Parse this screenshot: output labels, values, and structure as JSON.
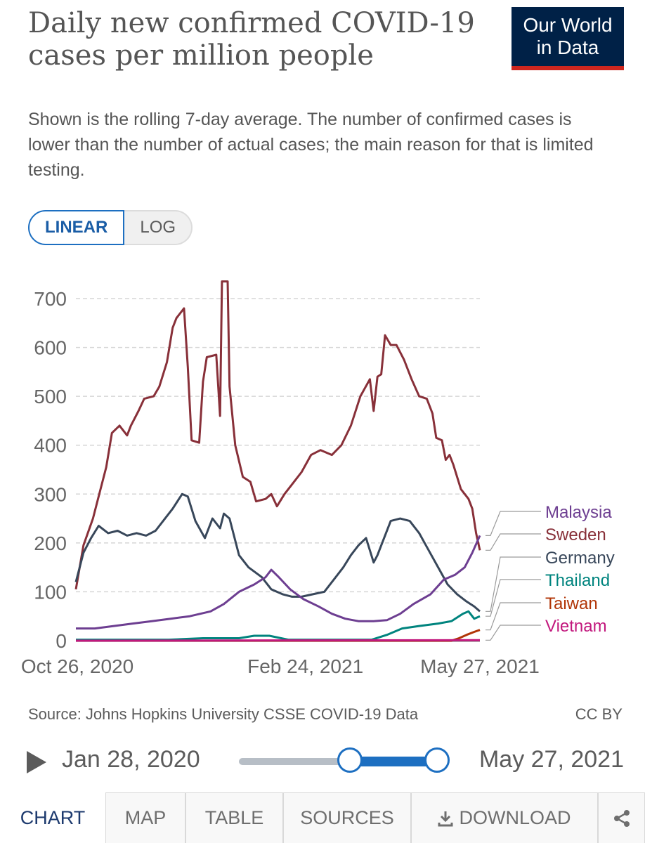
{
  "header": {
    "title": "Daily new confirmed COVID-19 cases per million people",
    "subtitle": "Shown is the rolling 7-day average. The number of confirmed cases is lower than the number of actual cases; the main reason for that is limited testing.",
    "logo_line1": "Our World",
    "logo_line2": "in Data",
    "logo_icon": "owid-logo"
  },
  "scale_toggle": {
    "linear": "LINEAR",
    "log": "LOG",
    "selected": "LINEAR"
  },
  "colors": {
    "Malaysia": "#6d3e91",
    "Sweden": "#883039",
    "Germany": "#38475a",
    "Thailand": "#00847e",
    "Taiwan": "#b13507",
    "Vietnam": "#c2187d",
    "accent": "#1d6fc1"
  },
  "chart_data": {
    "type": "line",
    "title": "Daily new confirmed COVID-19 cases per million people",
    "ylim": [
      0,
      700
    ],
    "yticks": [
      0,
      100,
      200,
      300,
      400,
      500,
      600,
      700
    ],
    "x_start": "2020-10-26",
    "x_end": "2021-05-27",
    "x_ticks": [
      "Oct 26, 2020",
      "Feb 24, 2021",
      "May 27, 2021"
    ],
    "grid": "horizontal dashed",
    "legend": "right, line-end labels",
    "series": [
      {
        "name": "Sweden",
        "points": [
          [
            "2020-10-26",
            105
          ],
          [
            "2020-10-30",
            195
          ],
          [
            "2020-11-04",
            250
          ],
          [
            "2020-11-08",
            310
          ],
          [
            "2020-11-11",
            355
          ],
          [
            "2020-11-14",
            425
          ],
          [
            "2020-11-18",
            440
          ],
          [
            "2020-11-22",
            420
          ],
          [
            "2020-11-24",
            440
          ],
          [
            "2020-11-28",
            470
          ],
          [
            "2020-12-01",
            495
          ],
          [
            "2020-12-06",
            500
          ],
          [
            "2020-12-09",
            520
          ],
          [
            "2020-12-13",
            570
          ],
          [
            "2020-12-16",
            640
          ],
          [
            "2020-12-18",
            660
          ],
          [
            "2020-12-22",
            680
          ],
          [
            "2020-12-24",
            560
          ],
          [
            "2020-12-26",
            410
          ],
          [
            "2020-12-30",
            405
          ],
          [
            "2021-01-01",
            530
          ],
          [
            "2021-01-03",
            580
          ],
          [
            "2021-01-08",
            585
          ],
          [
            "2021-01-10",
            460
          ],
          [
            "2021-01-11",
            735
          ],
          [
            "2021-01-14",
            735
          ],
          [
            "2021-01-15",
            520
          ],
          [
            "2021-01-18",
            400
          ],
          [
            "2021-01-22",
            335
          ],
          [
            "2021-01-26",
            325
          ],
          [
            "2021-01-29",
            285
          ],
          [
            "2021-02-03",
            290
          ],
          [
            "2021-02-06",
            300
          ],
          [
            "2021-02-09",
            275
          ],
          [
            "2021-02-13",
            300
          ],
          [
            "2021-02-17",
            320
          ],
          [
            "2021-02-22",
            345
          ],
          [
            "2021-02-27",
            380
          ],
          [
            "2021-03-04",
            390
          ],
          [
            "2021-03-10",
            380
          ],
          [
            "2021-03-15",
            400
          ],
          [
            "2021-03-20",
            440
          ],
          [
            "2021-03-25",
            500
          ],
          [
            "2021-03-30",
            535
          ],
          [
            "2021-04-01",
            470
          ],
          [
            "2021-04-03",
            540
          ],
          [
            "2021-04-05",
            545
          ],
          [
            "2021-04-07",
            625
          ],
          [
            "2021-04-10",
            605
          ],
          [
            "2021-04-13",
            605
          ],
          [
            "2021-04-17",
            575
          ],
          [
            "2021-04-21",
            535
          ],
          [
            "2021-04-25",
            500
          ],
          [
            "2021-04-29",
            495
          ],
          [
            "2021-05-02",
            465
          ],
          [
            "2021-05-04",
            415
          ],
          [
            "2021-05-07",
            410
          ],
          [
            "2021-05-09",
            370
          ],
          [
            "2021-05-11",
            380
          ],
          [
            "2021-05-13",
            360
          ],
          [
            "2021-05-17",
            310
          ],
          [
            "2021-05-21",
            290
          ],
          [
            "2021-05-23",
            270
          ],
          [
            "2021-05-25",
            220
          ],
          [
            "2021-05-27",
            185
          ]
        ]
      },
      {
        "name": "Germany",
        "points": [
          [
            "2020-10-26",
            120
          ],
          [
            "2020-10-30",
            180
          ],
          [
            "2020-11-03",
            210
          ],
          [
            "2020-11-07",
            235
          ],
          [
            "2020-11-12",
            220
          ],
          [
            "2020-11-17",
            225
          ],
          [
            "2020-11-22",
            215
          ],
          [
            "2020-11-27",
            220
          ],
          [
            "2020-12-02",
            215
          ],
          [
            "2020-12-07",
            225
          ],
          [
            "2020-12-12",
            250
          ],
          [
            "2020-12-16",
            270
          ],
          [
            "2020-12-21",
            300
          ],
          [
            "2020-12-24",
            295
          ],
          [
            "2020-12-28",
            245
          ],
          [
            "2021-01-02",
            210
          ],
          [
            "2021-01-06",
            250
          ],
          [
            "2021-01-10",
            230
          ],
          [
            "2021-01-12",
            260
          ],
          [
            "2021-01-15",
            250
          ],
          [
            "2021-01-20",
            175
          ],
          [
            "2021-01-25",
            150
          ],
          [
            "2021-02-01",
            130
          ],
          [
            "2021-02-06",
            105
          ],
          [
            "2021-02-12",
            95
          ],
          [
            "2021-02-17",
            90
          ],
          [
            "2021-02-22",
            90
          ],
          [
            "2021-02-28",
            95
          ],
          [
            "2021-03-06",
            100
          ],
          [
            "2021-03-12",
            130
          ],
          [
            "2021-03-16",
            150
          ],
          [
            "2021-03-20",
            175
          ],
          [
            "2021-03-24",
            195
          ],
          [
            "2021-03-28",
            210
          ],
          [
            "2021-04-01",
            160
          ],
          [
            "2021-04-03",
            175
          ],
          [
            "2021-04-07",
            215
          ],
          [
            "2021-04-10",
            245
          ],
          [
            "2021-04-15",
            250
          ],
          [
            "2021-04-20",
            245
          ],
          [
            "2021-04-25",
            220
          ],
          [
            "2021-04-30",
            185
          ],
          [
            "2021-05-05",
            150
          ],
          [
            "2021-05-10",
            115
          ],
          [
            "2021-05-15",
            95
          ],
          [
            "2021-05-20",
            80
          ],
          [
            "2021-05-24",
            70
          ],
          [
            "2021-05-27",
            60
          ]
        ]
      },
      {
        "name": "Malaysia",
        "points": [
          [
            "2020-10-26",
            25
          ],
          [
            "2020-11-05",
            25
          ],
          [
            "2020-11-15",
            30
          ],
          [
            "2020-11-25",
            35
          ],
          [
            "2020-12-05",
            40
          ],
          [
            "2020-12-15",
            45
          ],
          [
            "2020-12-25",
            50
          ],
          [
            "2021-01-05",
            60
          ],
          [
            "2021-01-12",
            75
          ],
          [
            "2021-01-20",
            100
          ],
          [
            "2021-01-28",
            115
          ],
          [
            "2021-02-03",
            130
          ],
          [
            "2021-02-06",
            145
          ],
          [
            "2021-02-10",
            130
          ],
          [
            "2021-02-16",
            105
          ],
          [
            "2021-02-23",
            85
          ],
          [
            "2021-03-03",
            70
          ],
          [
            "2021-03-10",
            55
          ],
          [
            "2021-03-17",
            45
          ],
          [
            "2021-03-24",
            40
          ],
          [
            "2021-04-01",
            40
          ],
          [
            "2021-04-08",
            42
          ],
          [
            "2021-04-15",
            55
          ],
          [
            "2021-04-22",
            75
          ],
          [
            "2021-05-01",
            95
          ],
          [
            "2021-05-08",
            125
          ],
          [
            "2021-05-14",
            135
          ],
          [
            "2021-05-19",
            150
          ],
          [
            "2021-05-23",
            180
          ],
          [
            "2021-05-27",
            215
          ]
        ]
      },
      {
        "name": "Thailand",
        "points": [
          [
            "2020-10-26",
            2
          ],
          [
            "2020-12-14",
            2
          ],
          [
            "2021-01-01",
            5
          ],
          [
            "2021-01-20",
            5
          ],
          [
            "2021-01-28",
            10
          ],
          [
            "2021-02-05",
            10
          ],
          [
            "2021-02-15",
            2
          ],
          [
            "2021-03-31",
            2
          ],
          [
            "2021-04-08",
            12
          ],
          [
            "2021-04-16",
            25
          ],
          [
            "2021-04-25",
            30
          ],
          [
            "2021-05-05",
            35
          ],
          [
            "2021-05-12",
            40
          ],
          [
            "2021-05-18",
            55
          ],
          [
            "2021-05-21",
            60
          ],
          [
            "2021-05-24",
            45
          ],
          [
            "2021-05-27",
            50
          ]
        ]
      },
      {
        "name": "Taiwan",
        "points": [
          [
            "2020-10-26",
            0
          ],
          [
            "2021-05-12",
            0
          ],
          [
            "2021-05-16",
            5
          ],
          [
            "2021-05-20",
            12
          ],
          [
            "2021-05-24",
            18
          ],
          [
            "2021-05-27",
            22
          ]
        ]
      },
      {
        "name": "Vietnam",
        "points": [
          [
            "2020-10-26",
            0
          ],
          [
            "2021-05-27",
            1
          ]
        ]
      }
    ],
    "legend_entries": [
      "Malaysia",
      "Sweden",
      "Germany",
      "Thailand",
      "Taiwan",
      "Vietnam"
    ]
  },
  "footer": {
    "source": "Source: Johns Hopkins University CSSE COVID-19 Data",
    "license": "CC BY"
  },
  "timeline": {
    "start_label": "Jan 28, 2020",
    "end_label": "May 27, 2021",
    "range_start_fraction": 0.57,
    "range_end_fraction": 1.0,
    "play_icon": "play-icon"
  },
  "tabs": [
    {
      "label": "CHART",
      "active": true
    },
    {
      "label": "MAP",
      "active": false
    },
    {
      "label": "TABLE",
      "active": false
    },
    {
      "label": "SOURCES",
      "active": false
    },
    {
      "label": "DOWNLOAD",
      "active": false,
      "icon": "download-icon"
    },
    {
      "label": "",
      "active": false,
      "icon": "share-icon"
    }
  ]
}
